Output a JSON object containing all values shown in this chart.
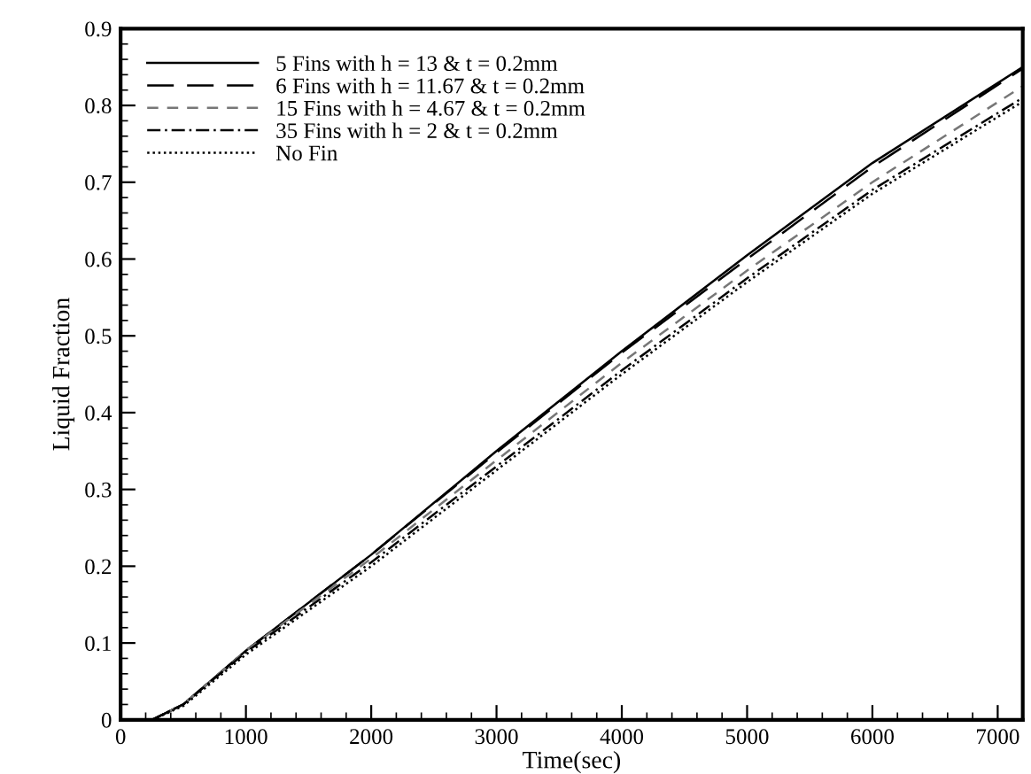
{
  "chart_data": {
    "type": "line",
    "xlabel": "Time(sec)",
    "ylabel": "Liquid Fraction",
    "x": [
      250,
      500,
      1000,
      2000,
      3000,
      4000,
      5000,
      6000,
      7200
    ],
    "xlim": [
      0,
      7200
    ],
    "xticks": [
      0,
      1000,
      2000,
      3000,
      4000,
      5000,
      6000,
      7000
    ],
    "ylim": [
      0,
      0.9
    ],
    "yticks": [
      0,
      0.1,
      0.2,
      0.3,
      0.4,
      0.5,
      0.6,
      0.7,
      0.8,
      0.9
    ],
    "grid": false,
    "legend": "top left",
    "series": [
      {
        "name": "5 Fins with h = 13 & t = 0.2mm",
        "color": "#000000",
        "line_style": "solid",
        "values": [
          0,
          0.02,
          0.09,
          0.215,
          0.35,
          0.48,
          0.605,
          0.725,
          0.85
        ]
      },
      {
        "name": "6 Fins with h = 11.67 & t = 0.2mm",
        "color": "#000000",
        "line_style": "longdash",
        "values": [
          0,
          0.02,
          0.09,
          0.215,
          0.348,
          0.478,
          0.6,
          0.72,
          0.848
        ]
      },
      {
        "name": "15 Fins with h = 4.67 & t = 0.2mm",
        "color": "#777777",
        "line_style": "dashed",
        "values": [
          0,
          0.02,
          0.09,
          0.21,
          0.338,
          0.465,
          0.585,
          0.7,
          0.825
        ]
      },
      {
        "name": "35 Fins with h = 2 & t = 0.2mm",
        "color": "#000000",
        "line_style": "dashdot",
        "values": [
          0,
          0.02,
          0.088,
          0.205,
          0.33,
          0.455,
          0.575,
          0.69,
          0.81
        ]
      },
      {
        "name": "No Fin",
        "color": "#000000",
        "line_style": "dotted",
        "values": [
          0,
          0.018,
          0.085,
          0.2,
          0.325,
          0.45,
          0.57,
          0.685,
          0.805
        ]
      }
    ]
  }
}
